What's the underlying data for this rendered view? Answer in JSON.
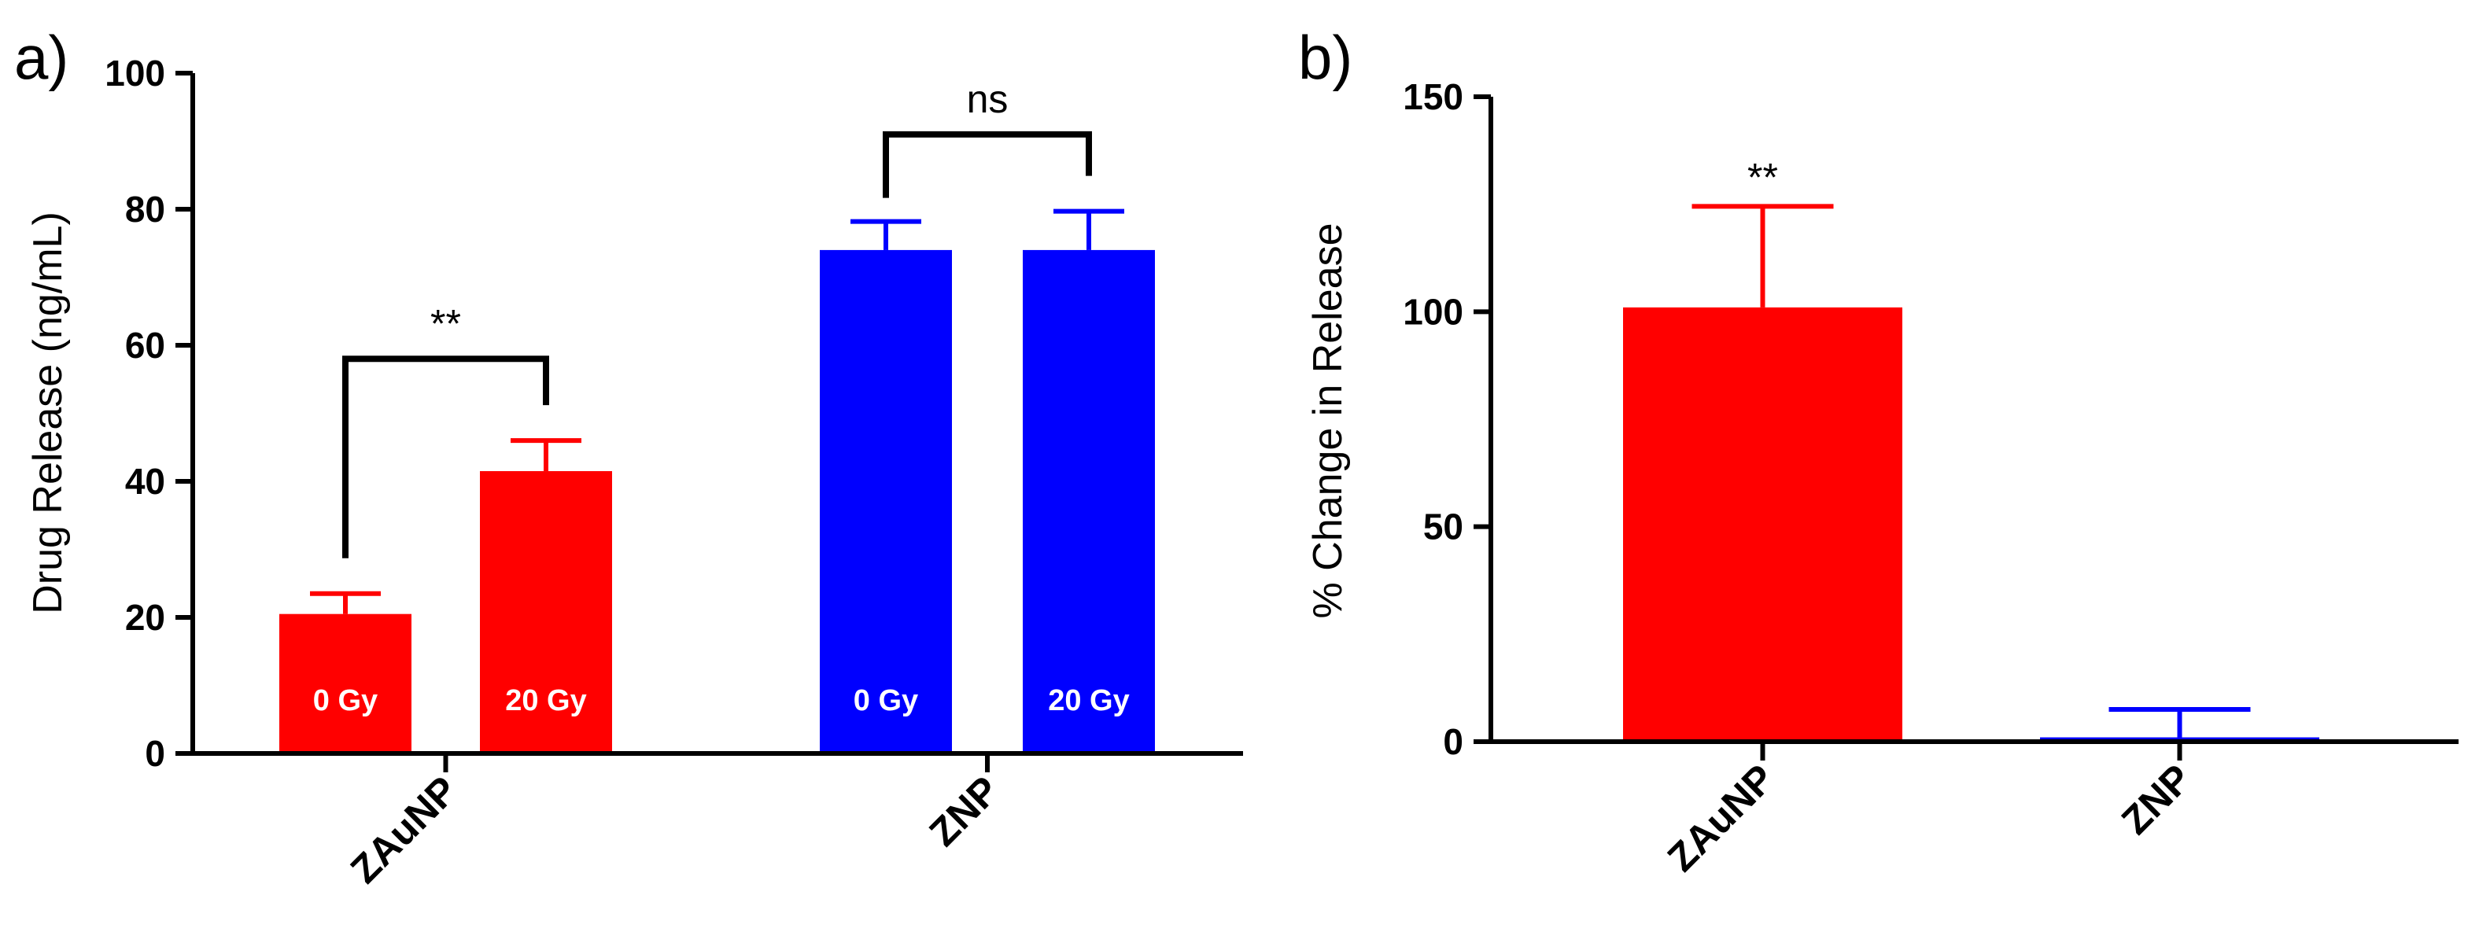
{
  "chart_data": [
    {
      "panel_label": "a)",
      "type": "bar",
      "ylabel": "Drug Release (ng/mL)",
      "ylim": [
        0,
        100
      ],
      "yticks": [
        "0",
        "20",
        "40",
        "60",
        "80",
        "100"
      ],
      "categories": [
        "ZAuNP",
        "ZNP"
      ],
      "bars": [
        {
          "group": "ZAuNP",
          "label": "0 Gy",
          "value": 20.5,
          "error": 3,
          "color": "#ff0000"
        },
        {
          "group": "ZAuNP",
          "label": "20 Gy",
          "value": 41.5,
          "error": 4.5,
          "color": "#ff0000"
        },
        {
          "group": "ZNP",
          "label": "0 Gy",
          "value": 74,
          "error": 4.2,
          "color": "#0000ff"
        },
        {
          "group": "ZNP",
          "label": "20 Gy",
          "value": 74,
          "error": 5.7,
          "color": "#0000ff"
        }
      ],
      "significance": [
        {
          "text": "**",
          "group": "ZAuNP",
          "y": 58
        },
        {
          "text": "ns",
          "group": "ZNP",
          "y": 91
        }
      ]
    },
    {
      "panel_label": "b)",
      "type": "bar",
      "ylabel": "% Change in Release",
      "ylim": [
        0,
        150
      ],
      "yticks": [
        "0",
        "50",
        "100",
        "150"
      ],
      "categories": [
        "ZAuNP",
        "ZNP"
      ],
      "bars": [
        {
          "group": "ZAuNP",
          "value": 101,
          "error": 23.5,
          "color": "#ff0000"
        },
        {
          "group": "ZNP",
          "value": 1,
          "error": 6.5,
          "color": "#0000ff"
        }
      ],
      "significance": [
        {
          "text": "**",
          "group": "ZAuNP"
        }
      ]
    }
  ]
}
